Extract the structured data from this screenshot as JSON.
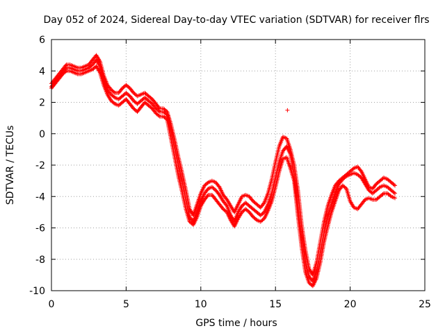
{
  "chart_data": {
    "type": "scatter",
    "title": "Day 052 of 2024, Sidereal Day-to-day VTEC variation (SDTVAR) for receiver flrs",
    "xlabel": "GPS time / hours",
    "ylabel": "SDTVAR / TECUs",
    "xlim": [
      0,
      25
    ],
    "ylim": [
      -10,
      6
    ],
    "xticks": [
      0,
      5,
      10,
      15,
      20,
      25
    ],
    "yticks": [
      -10,
      -8,
      -6,
      -4,
      -2,
      0,
      2,
      4,
      6
    ],
    "grid": true,
    "marker": "+",
    "color": "#ff0000",
    "series": [
      {
        "x": [
          0.0,
          0.25,
          0.5,
          0.75,
          1.0,
          1.25,
          1.5,
          1.75,
          2.0,
          2.25,
          2.5,
          2.75,
          3.0,
          3.25,
          3.5,
          3.75,
          4.0,
          4.25,
          4.5,
          4.75,
          5.0,
          5.25,
          5.5,
          5.75,
          6.0,
          6.25,
          6.5,
          6.75,
          7.0,
          7.25,
          7.5,
          7.75,
          8.0,
          8.25,
          8.5,
          8.75,
          9.0,
          9.25,
          9.5,
          9.75,
          10.0,
          10.25,
          10.5,
          10.75,
          11.0,
          11.25,
          11.5,
          11.75,
          12.0,
          12.25,
          12.5,
          12.75,
          13.0,
          13.25,
          13.5,
          13.75,
          14.0,
          14.25,
          14.5,
          14.75,
          15.0,
          15.25,
          15.5,
          15.75,
          16.0,
          16.25,
          16.5,
          16.75,
          17.0,
          17.25,
          17.5,
          17.75,
          18.0,
          18.25,
          18.5,
          18.75,
          19.0,
          19.25,
          19.5,
          19.75,
          20.0,
          20.25,
          20.5,
          20.75,
          21.0,
          21.25,
          21.5,
          21.75,
          22.0,
          22.25,
          22.5,
          22.75,
          23.0
        ],
        "y": [
          3.0,
          3.3,
          3.6,
          3.9,
          4.2,
          4.2,
          4.1,
          4.0,
          4.0,
          4.1,
          4.2,
          4.4,
          4.7,
          4.3,
          3.4,
          2.8,
          2.5,
          2.3,
          2.2,
          2.4,
          2.6,
          2.4,
          2.1,
          1.9,
          2.1,
          2.3,
          2.1,
          1.9,
          1.6,
          1.4,
          1.4,
          1.2,
          0.2,
          -0.9,
          -2.0,
          -3.0,
          -4.2,
          -5.3,
          -5.6,
          -5.0,
          -4.3,
          -3.8,
          -3.5,
          -3.4,
          -3.6,
          -3.9,
          -4.3,
          -4.6,
          -5.2,
          -5.6,
          -5.0,
          -4.6,
          -4.4,
          -4.6,
          -4.8,
          -5.0,
          -5.2,
          -5.0,
          -4.5,
          -3.8,
          -2.8,
          -1.8,
          -1.1,
          -0.8,
          -1.3,
          -2.6,
          -4.6,
          -6.6,
          -8.2,
          -9.1,
          -9.4,
          -8.8,
          -7.6,
          -6.3,
          -5.3,
          -4.5,
          -3.8,
          -3.2,
          -2.9,
          -2.7,
          -2.6,
          -2.5,
          -2.6,
          -2.8,
          -3.2,
          -3.6,
          -3.8,
          -3.6,
          -3.4,
          -3.3,
          -3.4,
          -3.6,
          -3.8
        ]
      },
      {
        "x": [
          0.0,
          0.25,
          0.5,
          0.75,
          1.0,
          1.25,
          1.5,
          1.75,
          2.0,
          2.25,
          2.5,
          2.75,
          3.0,
          3.25,
          3.5,
          3.75,
          4.0,
          4.25,
          4.5,
          4.75,
          5.0,
          5.25,
          5.5,
          5.75,
          6.0,
          6.25,
          6.5,
          6.75,
          7.0,
          7.25,
          7.5,
          7.75,
          8.0,
          8.25,
          8.5,
          8.75,
          9.0,
          9.25,
          9.5,
          9.75,
          10.0,
          10.25,
          10.5,
          10.75,
          11.0,
          11.25,
          11.5,
          11.75,
          12.0,
          12.25,
          12.5,
          12.75,
          13.0,
          13.25,
          13.5,
          13.75,
          14.0,
          14.25,
          14.5,
          14.75,
          15.0,
          15.25,
          15.5,
          15.75,
          16.0,
          16.25,
          16.5,
          16.75,
          17.0,
          17.25,
          17.5,
          17.75,
          18.0,
          18.25,
          18.5,
          18.75,
          19.0,
          19.25,
          19.5,
          19.75,
          20.0,
          20.25,
          20.5,
          20.75,
          21.0,
          21.25,
          21.5,
          21.75,
          22.0,
          22.25,
          22.5,
          22.75,
          23.0
        ],
        "y": [
          3.2,
          3.5,
          3.8,
          4.1,
          4.4,
          4.4,
          4.3,
          4.2,
          4.2,
          4.3,
          4.4,
          4.7,
          5.0,
          4.6,
          3.7,
          3.1,
          2.8,
          2.6,
          2.6,
          2.9,
          3.1,
          2.9,
          2.6,
          2.4,
          2.5,
          2.6,
          2.4,
          2.2,
          1.9,
          1.6,
          1.6,
          1.4,
          0.6,
          -0.4,
          -1.5,
          -2.5,
          -3.6,
          -4.8,
          -5.2,
          -4.5,
          -3.8,
          -3.3,
          -3.1,
          -3.0,
          -3.1,
          -3.4,
          -3.9,
          -4.2,
          -4.6,
          -5.0,
          -4.5,
          -4.0,
          -3.9,
          -4.0,
          -4.3,
          -4.5,
          -4.7,
          -4.4,
          -3.8,
          -2.9,
          -1.8,
          -0.8,
          -0.2,
          -0.3,
          -1.0,
          -2.0,
          -3.6,
          -5.8,
          -7.4,
          -8.6,
          -9.0,
          -8.2,
          -6.9,
          -5.6,
          -4.6,
          -3.9,
          -3.3,
          -3.0,
          -2.8,
          -2.6,
          -2.4,
          -2.2,
          -2.1,
          -2.4,
          -2.9,
          -3.4,
          -3.5,
          -3.2,
          -3.0,
          -2.8,
          -2.9,
          -3.1,
          -3.3
        ]
      },
      {
        "x": [
          0.0,
          0.25,
          0.5,
          0.75,
          1.0,
          1.25,
          1.5,
          1.75,
          2.0,
          2.25,
          2.5,
          2.75,
          3.0,
          3.25,
          3.5,
          3.75,
          4.0,
          4.25,
          4.5,
          4.75,
          5.0,
          5.25,
          5.5,
          5.75,
          6.0,
          6.25,
          6.5,
          6.75,
          7.0,
          7.25,
          7.5,
          7.75,
          8.0,
          8.25,
          8.5,
          8.75,
          9.0,
          9.25,
          9.5,
          9.75,
          10.0,
          10.25,
          10.5,
          10.75,
          11.0,
          11.25,
          11.5,
          11.75,
          12.0,
          12.25,
          12.5,
          12.75,
          13.0,
          13.25,
          13.5,
          13.75,
          14.0,
          14.25,
          14.5,
          14.75,
          15.0,
          15.25,
          15.5,
          15.75,
          16.0,
          16.25,
          16.5,
          16.75,
          17.0,
          17.25,
          17.5,
          17.75,
          18.0,
          18.25,
          18.5,
          18.75,
          19.0,
          19.25,
          19.5,
          19.75,
          20.0,
          20.25,
          20.5,
          20.75,
          21.0,
          21.25,
          21.5,
          21.75,
          22.0,
          22.25,
          22.5,
          22.75,
          23.0
        ],
        "y": [
          2.9,
          3.2,
          3.5,
          3.8,
          4.0,
          4.0,
          3.9,
          3.8,
          3.8,
          3.9,
          4.0,
          4.1,
          4.3,
          3.9,
          3.1,
          2.5,
          2.1,
          1.9,
          1.8,
          2.0,
          2.2,
          1.9,
          1.6,
          1.4,
          1.7,
          2.0,
          1.8,
          1.6,
          1.3,
          1.1,
          1.1,
          0.9,
          -0.3,
          -1.5,
          -2.7,
          -3.7,
          -4.8,
          -5.6,
          -5.8,
          -5.3,
          -4.6,
          -4.2,
          -3.9,
          -3.9,
          -4.2,
          -4.5,
          -4.8,
          -5.0,
          -5.5,
          -5.9,
          -5.4,
          -5.0,
          -4.8,
          -5.0,
          -5.3,
          -5.5,
          -5.6,
          -5.4,
          -4.9,
          -4.3,
          -3.4,
          -2.4,
          -1.6,
          -1.5,
          -2.2,
          -3.0,
          -5.2,
          -7.2,
          -8.8,
          -9.5,
          -9.7,
          -9.2,
          -8.2,
          -6.9,
          -5.9,
          -5.0,
          -4.3,
          -3.6,
          -3.3,
          -3.5,
          -4.3,
          -4.7,
          -4.8,
          -4.5,
          -4.2,
          -4.1,
          -4.2,
          -4.2,
          -4.0,
          -3.8,
          -3.8,
          -4.0,
          -4.1
        ]
      },
      {
        "x": [
          15.8
        ],
        "y": [
          1.5
        ]
      }
    ]
  }
}
